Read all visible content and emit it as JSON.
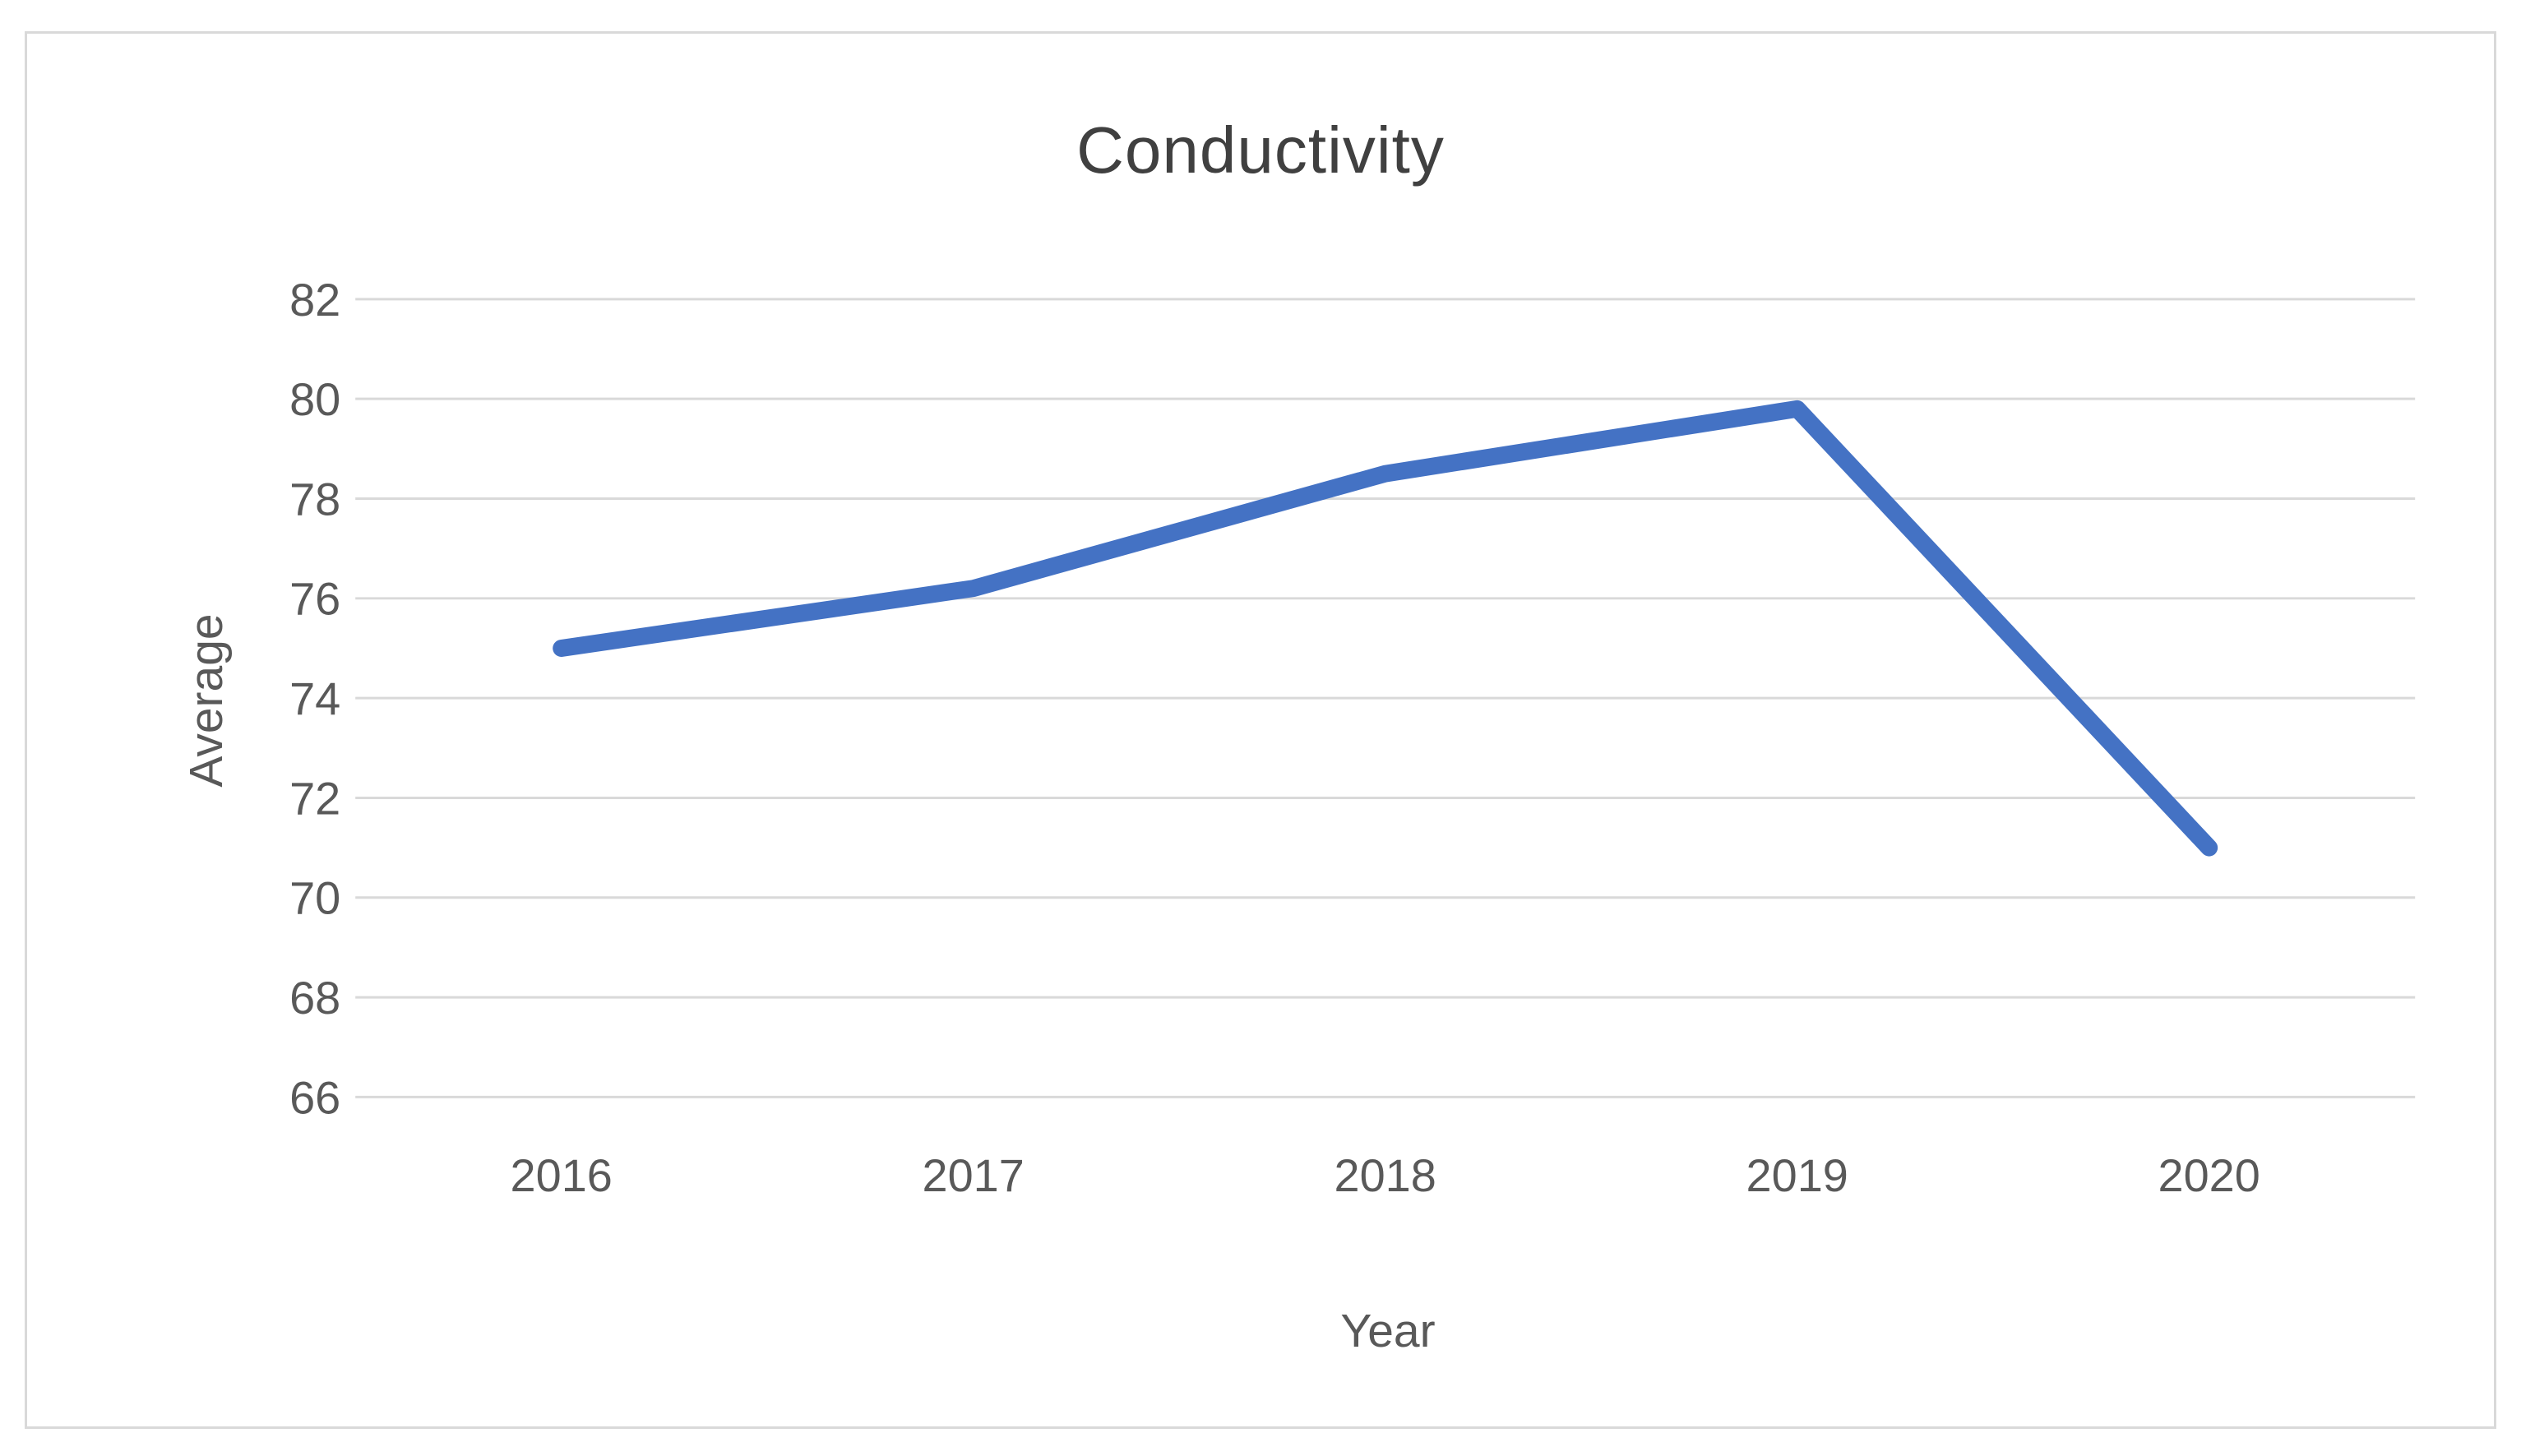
{
  "chart_data": {
    "type": "line",
    "title": "Conductivity",
    "xlabel": "Year",
    "ylabel": "Average",
    "categories": [
      "2016",
      "2017",
      "2018",
      "2019",
      "2020"
    ],
    "values": [
      75,
      76.2,
      78.5,
      79.8,
      71
    ],
    "ylim": [
      66,
      82
    ],
    "yticks": [
      66,
      68,
      70,
      72,
      74,
      76,
      78,
      80,
      82
    ],
    "grid": true,
    "legend_position": "none",
    "colors": {
      "line": "#4472C4",
      "gridline": "#D9D9D9",
      "tick_text": "#595959",
      "axis_title_text": "#595959",
      "title_text": "#404040",
      "frame_border": "#D9D9D9",
      "background": "#FFFFFF"
    }
  }
}
